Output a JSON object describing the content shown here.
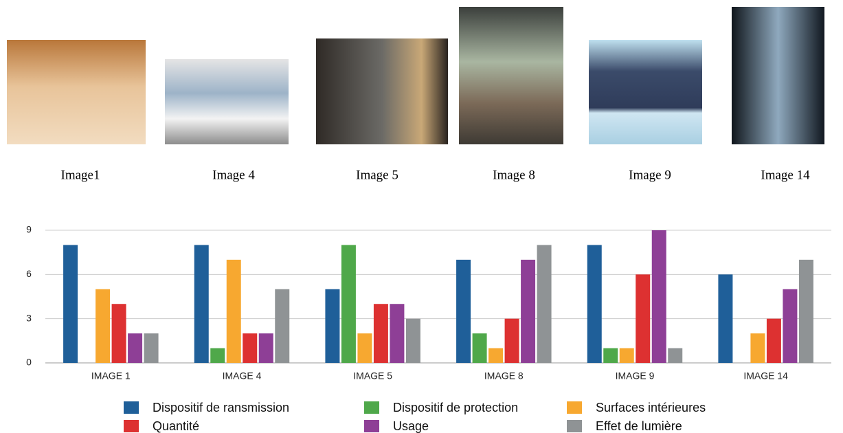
{
  "photos": {
    "captions": [
      "Image1",
      "Image 4",
      "Image 5",
      "Image 8",
      "Image 9",
      "Image 14"
    ]
  },
  "chart_data": {
    "type": "bar",
    "categories": [
      "IMAGE 1",
      "IMAGE 4",
      "IMAGE 5",
      "IMAGE 8",
      "IMAGE 9",
      "IMAGE 14"
    ],
    "series": [
      {
        "name": "Dispositif de ransmission",
        "color": "#1f5f99",
        "values": [
          8,
          8,
          5,
          7,
          8,
          6
        ]
      },
      {
        "name": "Dispositif de protection",
        "color": "#4fa84a",
        "values": [
          0,
          1,
          8,
          2,
          1,
          0
        ]
      },
      {
        "name": "Surfaces intérieures",
        "color": "#f7a830",
        "values": [
          5,
          7,
          2,
          1,
          1,
          2
        ]
      },
      {
        "name": "Quantité",
        "color": "#dd3131",
        "values": [
          4,
          2,
          4,
          3,
          6,
          3
        ]
      },
      {
        "name": "Usage",
        "color": "#8e3f96",
        "values": [
          2,
          2,
          4,
          7,
          9,
          5
        ]
      },
      {
        "name": "Effet de lumière",
        "color": "#8f9395",
        "values": [
          2,
          5,
          3,
          8,
          1,
          7
        ]
      }
    ],
    "ylim": [
      0,
      9
    ],
    "yticks": [
      0,
      3,
      6,
      9
    ],
    "grid": true
  }
}
